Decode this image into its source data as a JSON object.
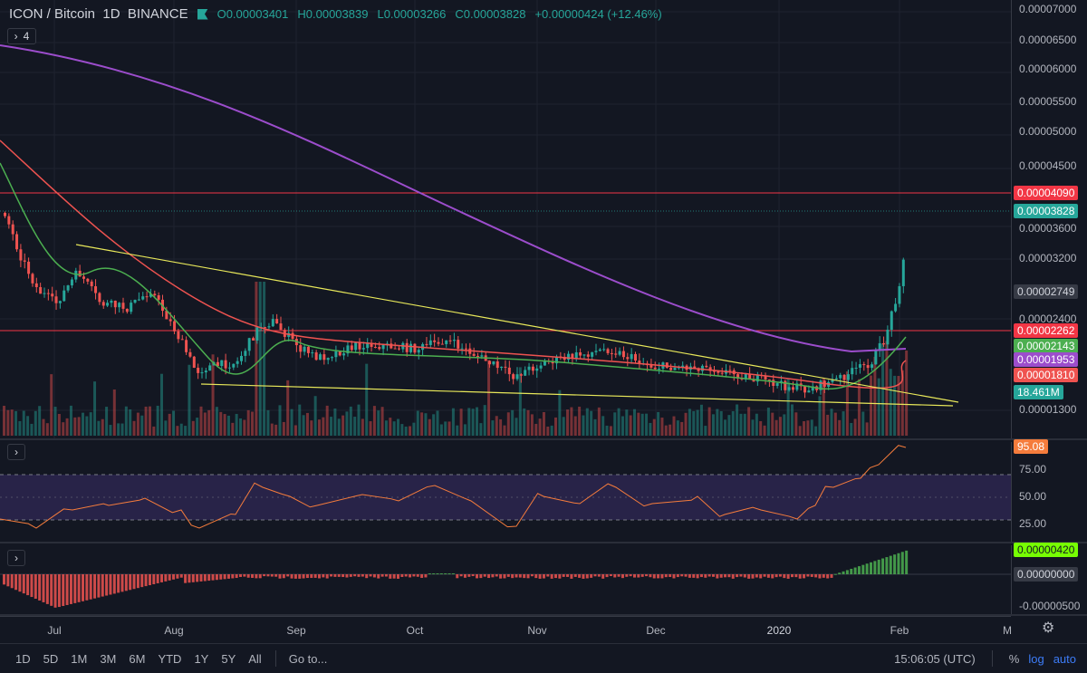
{
  "header": {
    "symbol": "ICON / Bitcoin",
    "interval": "1D",
    "exchange": "BINANCE",
    "open": "O0.00003401",
    "high": "H0.00003839",
    "low": "L0.00003266",
    "close": "C0.00003828",
    "change": "+0.00000424 (+12.46%)",
    "indicator_count": "4"
  },
  "colors": {
    "up": "#26a69a",
    "down": "#ef5350",
    "ma_purple": "#9c4dcc",
    "ma_red": "#ef5350",
    "ma_green": "#4caf50",
    "trendline": "#e8e85a",
    "rsi_line": "#f57c3c",
    "rsi_band": "#2e2752",
    "macd_pos": "#4caf50",
    "macd_neg": "#ef5350",
    "hline": "#f23645"
  },
  "price_axis": {
    "labels": [
      "0.00007000",
      "0.00006500",
      "0.00006000",
      "0.00005500",
      "0.00005000",
      "0.00004500",
      "0.00003600",
      "0.00003200",
      "0.00002400",
      "0.00001300"
    ],
    "tags": [
      {
        "text": "0.00004090",
        "color": "#f23645"
      },
      {
        "text": "0.00003828",
        "color": "#26a69a"
      },
      {
        "text": "0.00002749",
        "color": "gray"
      },
      {
        "text": "0.00002262",
        "color": "#f23645"
      },
      {
        "text": "0.00002143",
        "color": "#4caf50"
      },
      {
        "text": "0.00001953",
        "color": "#9c4dcc"
      },
      {
        "text": "0.00001810",
        "color": "#ef5350"
      },
      {
        "text": "18.461M",
        "color": "#26a69a"
      }
    ]
  },
  "rsi_axis": {
    "labels": [
      "75.00",
      "50.00",
      "25.00"
    ],
    "tag": {
      "text": "95.08",
      "color": "#f57c3c"
    }
  },
  "macd_axis": {
    "tag_pos": {
      "text": "0.00000420",
      "color": "#76ff03"
    },
    "tag_zero": {
      "text": "0.00000000",
      "color": "gray"
    },
    "label_neg": "-0.00000500"
  },
  "time_axis": [
    "Jul",
    "Aug",
    "Sep",
    "Oct",
    "Nov",
    "Dec",
    "2020",
    "Feb",
    "M"
  ],
  "bottom_bar": {
    "timeframes": [
      "1D",
      "5D",
      "1M",
      "3M",
      "6M",
      "YTD",
      "1Y",
      "5Y",
      "All"
    ],
    "goto": "Go to...",
    "clock": "15:06:05 (UTC)",
    "percent": "%",
    "log": "log",
    "auto": "auto"
  }
}
